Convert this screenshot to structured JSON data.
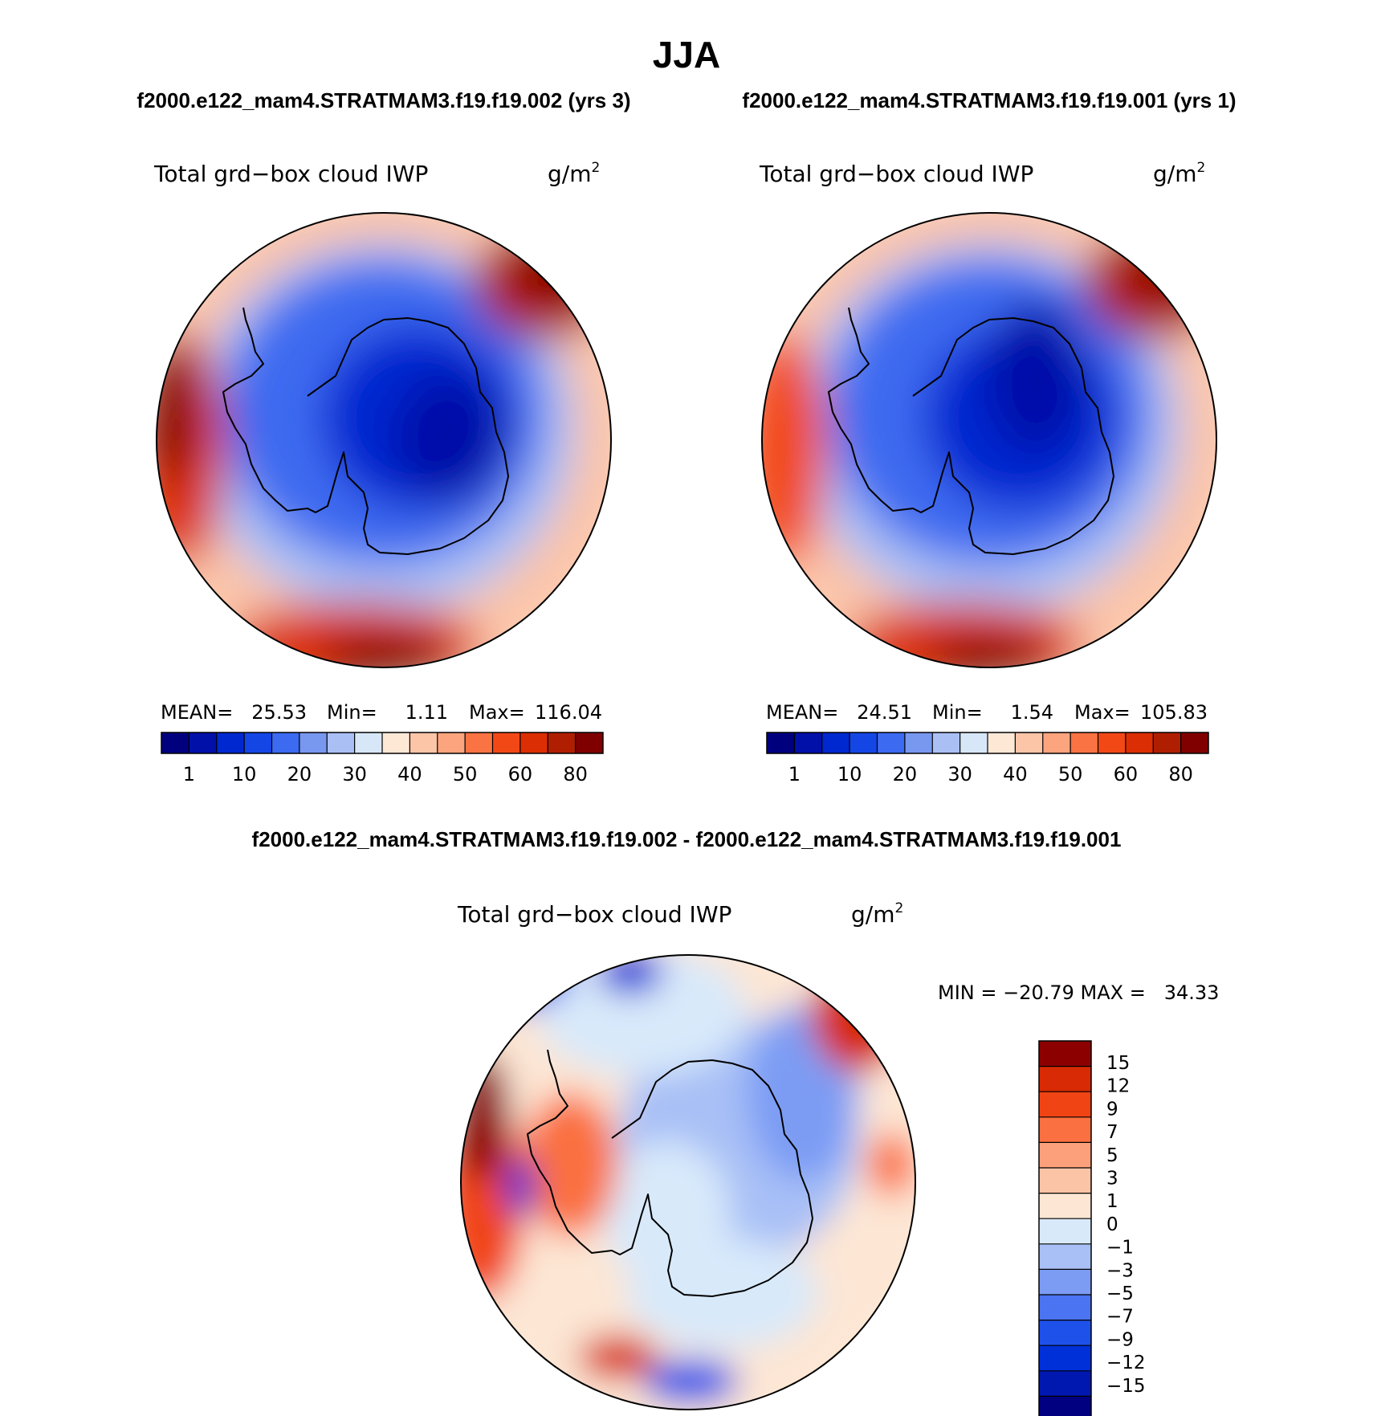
{
  "figure": {
    "title": "JJA",
    "case_a": "f2000.e122_mam4.STRATMAM3.f19.f19.002 (yrs 3)",
    "case_b": "f2000.e122_mam4.STRATMAM3.f19.f19.001 (yrs 1)",
    "diff_title": "f2000.e122_mam4.STRATMAM3.f19.f19.002 - f2000.e122_mam4.STRATMAM3.f19.f19.001"
  },
  "chart_data": [
    {
      "type": "heatmap",
      "projection": "south-polar-stereographic",
      "variable": "Total grd−box cloud IWP",
      "units": "g/m",
      "units_exp": "2",
      "stats": {
        "mean_label": "MEAN=",
        "mean": "25.53",
        "min_label": "Min=",
        "min": "1.11",
        "max_label": "Max=",
        "max": "116.04"
      },
      "levels": [
        1,
        5,
        10,
        15,
        20,
        25,
        30,
        35,
        40,
        45,
        50,
        55,
        60,
        70,
        80
      ],
      "tick_labels": [
        "1",
        "10",
        "20",
        "30",
        "40",
        "50",
        "60",
        "80"
      ],
      "colors": [
        "#00007f",
        "#0010a8",
        "#0028d0",
        "#1446e6",
        "#3c6af0",
        "#7898f0",
        "#aac0f5",
        "#d7e7f8",
        "#fde8d6",
        "#fcc5a8",
        "#fba47e",
        "#fa7343",
        "#f24816",
        "#dc2e04",
        "#b01e02",
        "#800000"
      ]
    },
    {
      "type": "heatmap",
      "projection": "south-polar-stereographic",
      "variable": "Total grd−box cloud IWP",
      "units": "g/m",
      "units_exp": "2",
      "stats": {
        "mean_label": "MEAN=",
        "mean": "24.51",
        "min_label": "Min=",
        "min": "1.54",
        "max_label": "Max=",
        "max": "105.83"
      },
      "levels": [
        1,
        5,
        10,
        15,
        20,
        25,
        30,
        35,
        40,
        45,
        50,
        55,
        60,
        70,
        80
      ],
      "tick_labels": [
        "1",
        "10",
        "20",
        "30",
        "40",
        "50",
        "60",
        "80"
      ],
      "colors": [
        "#00007f",
        "#0010a8",
        "#0028d0",
        "#1446e6",
        "#3c6af0",
        "#7898f0",
        "#aac0f5",
        "#d7e7f8",
        "#fde8d6",
        "#fcc5a8",
        "#fba47e",
        "#fa7343",
        "#f24816",
        "#dc2e04",
        "#b01e02",
        "#800000"
      ]
    },
    {
      "type": "heatmap",
      "projection": "south-polar-stereographic",
      "variable": "Total grd−box cloud IWP",
      "units": "g/m",
      "units_exp": "2",
      "stats_text": "MIN = −20.79 MAX =   34.33",
      "levels": [
        -15,
        -12,
        -9,
        -7,
        -5,
        -3,
        -1,
        0,
        1,
        3,
        5,
        7,
        9,
        12,
        15
      ],
      "tick_labels": [
        "15",
        "12",
        "9",
        "7",
        "5",
        "3",
        "1",
        "0",
        "−1",
        "−3",
        "−5",
        "−7",
        "−9",
        "−12",
        "−15"
      ],
      "colors": [
        "#000080",
        "#0018b0",
        "#0030d8",
        "#1e50ea",
        "#4a74f2",
        "#7c9cf4",
        "#a8c0f6",
        "#d8e9fa",
        "#fde6d4",
        "#fcc4a6",
        "#fba07a",
        "#fa7040",
        "#f14414",
        "#d82a04",
        "#8c0000"
      ]
    }
  ]
}
